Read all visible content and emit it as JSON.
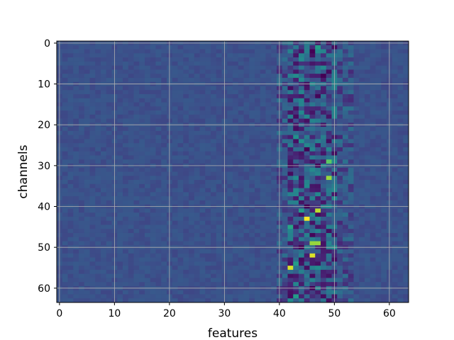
{
  "chart_data": {
    "type": "heatmap",
    "title": "",
    "xlabel": "features",
    "ylabel": "channels",
    "rows": 64,
    "cols": 64,
    "xlim": [
      -0.5,
      63.5
    ],
    "ylim": [
      63.5,
      -0.5
    ],
    "x_ticks": [
      0,
      10,
      20,
      30,
      40,
      50,
      60
    ],
    "y_ticks": [
      0,
      10,
      20,
      30,
      40,
      50,
      60
    ],
    "x_tick_labels": [
      "0",
      "10",
      "20",
      "30",
      "40",
      "50",
      "60"
    ],
    "y_tick_labels": [
      "0",
      "10",
      "20",
      "30",
      "40",
      "50",
      "60"
    ],
    "grid": true,
    "colormap": "viridis",
    "background_color": "#3b528b",
    "active_band": [
      40,
      53
    ],
    "hot_cells": [
      {
        "channel": 1,
        "feature": 47,
        "value": 0.55
      },
      {
        "channel": 2,
        "feature": 48,
        "value": 0.45
      },
      {
        "channel": 3,
        "feature": 50,
        "value": 0.4
      },
      {
        "channel": 15,
        "feature": 44,
        "value": 0.45
      },
      {
        "channel": 23,
        "feature": 43,
        "value": 0.5
      },
      {
        "channel": 24,
        "feature": 44,
        "value": 0.5
      },
      {
        "channel": 29,
        "feature": 49,
        "value": 0.75
      },
      {
        "channel": 33,
        "feature": 49,
        "value": 0.85
      },
      {
        "channel": 37,
        "feature": 43,
        "value": 0.45
      },
      {
        "channel": 41,
        "feature": 47,
        "value": 0.9
      },
      {
        "channel": 41,
        "feature": 44,
        "value": 0.55
      },
      {
        "channel": 43,
        "feature": 45,
        "value": 1.0
      },
      {
        "channel": 45,
        "feature": 42,
        "value": 0.6
      },
      {
        "channel": 49,
        "feature": 46,
        "value": 0.85
      },
      {
        "channel": 49,
        "feature": 47,
        "value": 0.85
      },
      {
        "channel": 52,
        "feature": 46,
        "value": 0.95
      },
      {
        "channel": 55,
        "feature": 42,
        "value": 0.95
      },
      {
        "channel": 54,
        "feature": 43,
        "value": 0.55
      },
      {
        "channel": 62,
        "feature": 43,
        "value": 0.55
      }
    ],
    "cold_cells": [
      {
        "channel": 2,
        "feature": 46,
        "value": 0.0
      },
      {
        "channel": 8,
        "feature": 48,
        "value": 0.0
      },
      {
        "channel": 13,
        "feature": 47,
        "value": 0.02
      },
      {
        "channel": 26,
        "feature": 45,
        "value": 0.0
      },
      {
        "channel": 30,
        "feature": 47,
        "value": 0.02
      },
      {
        "channel": 40,
        "feature": 45,
        "value": 0.0
      },
      {
        "channel": 47,
        "feature": 46,
        "value": 0.02
      },
      {
        "channel": 50,
        "feature": 44,
        "value": 0.0
      },
      {
        "channel": 60,
        "feature": 46,
        "value": 0.0
      }
    ]
  }
}
